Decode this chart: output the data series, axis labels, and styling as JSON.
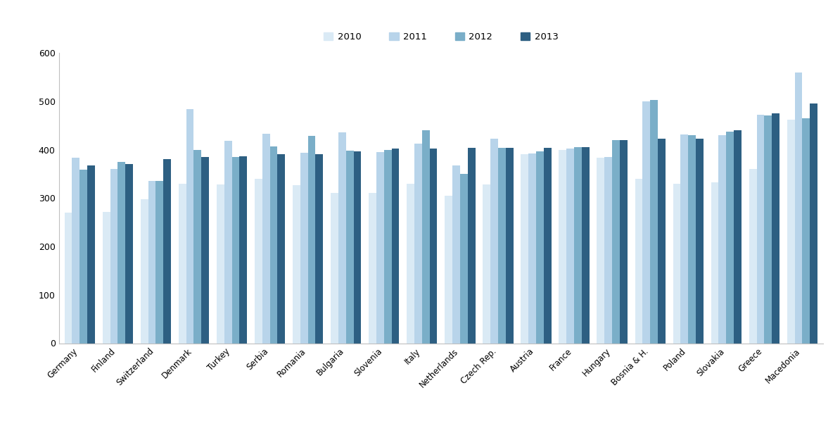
{
  "categories": [
    "Germany",
    "Finland",
    "Switzerland",
    "Denmark",
    "Turkey",
    "Serbia",
    "Romania",
    "Bulgaria",
    "Slovenia",
    "Italy",
    "Netherlands",
    "Czech Rep.",
    "Austria",
    "France",
    "Hungary",
    "Bosnia & H.",
    "Poland",
    "Slovakia",
    "Greece",
    "Macedonia"
  ],
  "series": {
    "2010": [
      270,
      272,
      298,
      330,
      328,
      340,
      327,
      311,
      311,
      330,
      305,
      328,
      390,
      400,
      383,
      340,
      330,
      332,
      360,
      462
    ],
    "2011": [
      383,
      360,
      335,
      483,
      418,
      433,
      393,
      435,
      395,
      413,
      368,
      422,
      392,
      402,
      385,
      500,
      432,
      430,
      472,
      560
    ],
    "2012": [
      358,
      375,
      335,
      399,
      385,
      407,
      428,
      398,
      400,
      440,
      350,
      403,
      396,
      405,
      420,
      503,
      430,
      437,
      470,
      465
    ],
    "2013": [
      367,
      370,
      381,
      385,
      386,
      390,
      390,
      397,
      402,
      402,
      404,
      403,
      403,
      405,
      420,
      422,
      422,
      440,
      475,
      495
    ]
  },
  "colors": {
    "2010": "#daeaf5",
    "2011": "#b8d4ea",
    "2012": "#7aaec8",
    "2013": "#2d5f82"
  },
  "ylim": [
    0,
    600
  ],
  "yticks": [
    0,
    100,
    200,
    300,
    400,
    500,
    600
  ],
  "ylabel": "",
  "xlabel": "",
  "background_color": "#ffffff",
  "legend_labels": [
    "2010",
    "2011",
    "2012",
    "2013"
  ]
}
